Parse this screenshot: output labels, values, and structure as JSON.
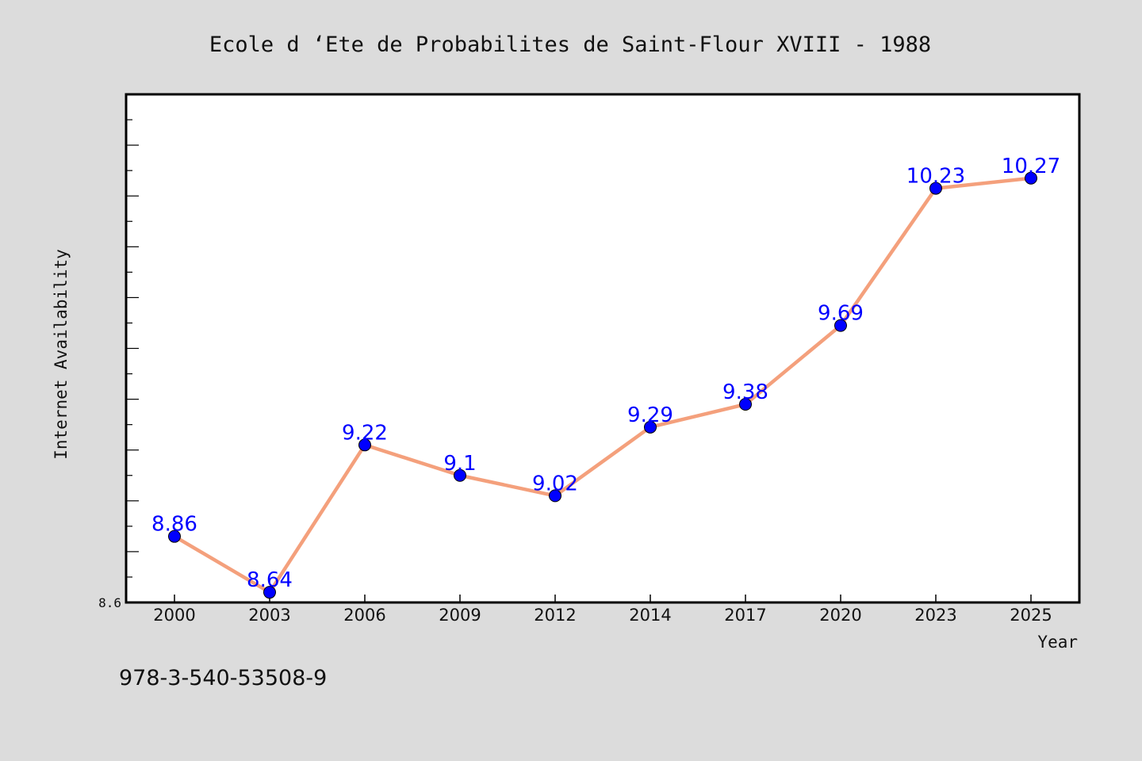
{
  "chart_data": {
    "type": "line",
    "title": "Ecole d ‘Ete de Probabilites de Saint-Flour XVIII - 1988",
    "xlabel": "Year",
    "ylabel": "Internet Availability",
    "categories": [
      "2000",
      "2003",
      "2006",
      "2009",
      "2012",
      "2014",
      "2017",
      "2020",
      "2023",
      "2025"
    ],
    "series": [
      {
        "values": [
          8.86,
          8.64,
          9.22,
          9.1,
          9.02,
          9.29,
          9.38,
          9.69,
          10.23,
          10.27
        ]
      }
    ],
    "data_labels": [
      "8.86",
      "8.64",
      "9.22",
      "9.1",
      "9.02",
      "9.29",
      "9.38",
      "9.69",
      "10.23",
      "10.27"
    ],
    "ylim": [
      8.6,
      10.6
    ],
    "y_tick_labels": [
      "8.6"
    ],
    "grid": false,
    "legend": "none",
    "line_color": "#f4a07c",
    "marker_color": "#0000ff",
    "label_color": "#0000ff"
  },
  "footer": {
    "isbn": "978-3-540-53508-9"
  }
}
